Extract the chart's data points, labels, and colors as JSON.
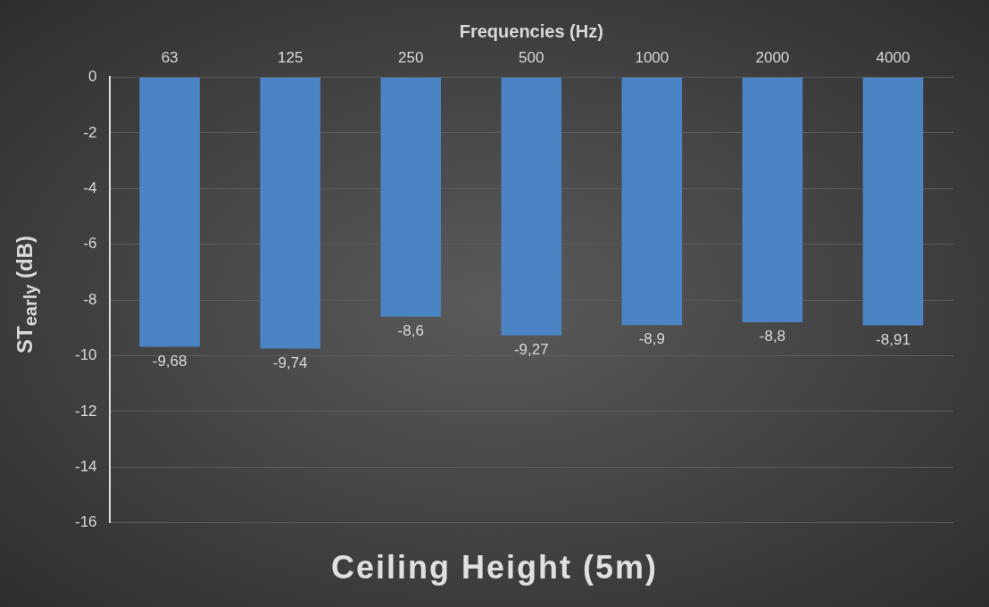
{
  "chart_data": {
    "type": "bar",
    "title": "Ceiling Height (5m)",
    "xlabel": "Frequencies (Hz)",
    "ylabel": "ST$_{early}$ (dB)",
    "categories": [
      "63",
      "125",
      "250",
      "500",
      "1000",
      "2000",
      "4000"
    ],
    "values": [
      -9.68,
      -9.74,
      -8.6,
      -9.27,
      -8.9,
      -8.8,
      -8.91
    ],
    "value_labels": [
      "-9,68",
      "-9,74",
      "-8,6",
      "-9,27",
      "-8,9",
      "-8,8",
      "-8,91"
    ],
    "color": "#4a84c4",
    "ylim": [
      -16,
      0
    ],
    "yticks": [
      0,
      -2,
      -4,
      -6,
      -8,
      -10,
      -12,
      -14,
      -16
    ],
    "grid": "y",
    "legend": false
  }
}
